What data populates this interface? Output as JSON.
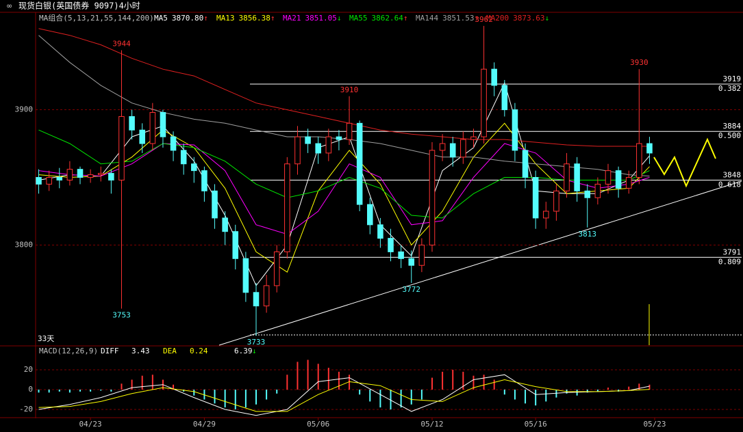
{
  "chart_data": {
    "type": "candlestick",
    "title": "现货白银(英国债券 9097)4小时",
    "ma_title": "MA组合(5,13,21,55,144,200)",
    "period_label": "33天",
    "xlim": [
      -0.3,
      67.9
    ],
    "ylim": [
      3726,
      3971
    ],
    "yticks": [
      3800,
      3900
    ],
    "xticks": [
      {
        "value": 5,
        "label": "04/23"
      },
      {
        "value": 16,
        "label": "04/29"
      },
      {
        "value": 27,
        "label": "05/06"
      },
      {
        "value": 38,
        "label": "05/12"
      },
      {
        "value": 48,
        "label": "05/16"
      },
      {
        "value": 59.5,
        "label": "05/23"
      }
    ],
    "open": [
      3850,
      3845,
      3850,
      3848,
      3856,
      3850,
      3852,
      3853,
      3848,
      3895,
      3885,
      3875,
      3898,
      3880,
      3870,
      3860,
      3855,
      3840,
      3820,
      3810,
      3790,
      3765,
      3755,
      3770,
      3795,
      3860,
      3880,
      3875,
      3868,
      3880,
      3878,
      3890,
      3830,
      3815,
      3805,
      3795,
      3790,
      3785,
      3800,
      3870,
      3875,
      3865,
      3878,
      3880,
      3930,
      3918,
      3900,
      3870,
      3850,
      3820,
      3825,
      3840,
      3860,
      3840,
      3835,
      3845,
      3855,
      3842,
      3850,
      3875
    ],
    "high": [
      3856,
      3855,
      3857,
      3862,
      3858,
      3856,
      3858,
      3856,
      3944,
      3900,
      3890,
      3905,
      3900,
      3884,
      3875,
      3865,
      3858,
      3845,
      3825,
      3815,
      3795,
      3772,
      3778,
      3800,
      3865,
      3888,
      3886,
      3880,
      3886,
      3885,
      3910,
      3892,
      3835,
      3820,
      3812,
      3800,
      3796,
      3805,
      3876,
      3882,
      3880,
      3884,
      3886,
      3962,
      3935,
      3922,
      3905,
      3875,
      3855,
      3832,
      3845,
      3868,
      3865,
      3845,
      3850,
      3860,
      3858,
      3855,
      3930,
      3880
    ],
    "low": [
      3838,
      3840,
      3842,
      3844,
      3845,
      3846,
      3847,
      3838,
      3753,
      3878,
      3868,
      3870,
      3872,
      3862,
      3852,
      3846,
      3832,
      3812,
      3800,
      3782,
      3758,
      3733,
      3750,
      3765,
      3790,
      3852,
      3868,
      3860,
      3862,
      3870,
      3874,
      3825,
      3808,
      3798,
      3788,
      3783,
      3772,
      3780,
      3795,
      3862,
      3858,
      3860,
      3872,
      3875,
      3910,
      3895,
      3862,
      3842,
      3812,
      3812,
      3818,
      3835,
      3832,
      3813,
      3830,
      3838,
      3835,
      3838,
      3845,
      3860
    ],
    "close": [
      3845,
      3850,
      3848,
      3856,
      3850,
      3852,
      3853,
      3848,
      3895,
      3885,
      3875,
      3898,
      3880,
      3870,
      3860,
      3855,
      3840,
      3820,
      3810,
      3790,
      3765,
      3755,
      3770,
      3795,
      3860,
      3880,
      3875,
      3868,
      3880,
      3878,
      3890,
      3830,
      3815,
      3805,
      3795,
      3790,
      3785,
      3800,
      3870,
      3875,
      3865,
      3878,
      3880,
      3930,
      3918,
      3900,
      3870,
      3850,
      3820,
      3825,
      3840,
      3860,
      3840,
      3835,
      3845,
      3855,
      3842,
      3850,
      3875,
      3868
    ],
    "up_color": "#ff3232",
    "down_color": "#54fcfc",
    "ma_x": [
      0,
      3,
      6,
      9,
      12,
      15,
      18,
      21,
      24,
      27,
      30,
      33,
      36,
      39,
      42,
      45,
      48,
      51,
      54,
      57,
      59
    ],
    "series": [
      {
        "name": "MA5",
        "color": "#ffffff",
        "legend_value": "3870.80",
        "arrow": "↑",
        "values": [
          3848,
          3852,
          3851,
          3880,
          3888,
          3862,
          3822,
          3770,
          3800,
          3872,
          3880,
          3815,
          3792,
          3855,
          3872,
          3920,
          3840,
          3838,
          3838,
          3848,
          3866
        ]
      },
      {
        "name": "MA13",
        "color": "#ffff00",
        "legend_value": "3856.38",
        "arrow": "↑",
        "values": [
          3852,
          3850,
          3851,
          3865,
          3885,
          3872,
          3842,
          3795,
          3780,
          3840,
          3870,
          3845,
          3800,
          3825,
          3865,
          3890,
          3860,
          3838,
          3840,
          3842,
          3858
        ]
      },
      {
        "name": "MA21",
        "color": "#ff00ff",
        "legend_value": "3851.05",
        "arrow": "↓",
        "values": [
          3855,
          3852,
          3851,
          3860,
          3875,
          3874,
          3855,
          3815,
          3808,
          3825,
          3860,
          3850,
          3815,
          3818,
          3850,
          3875,
          3868,
          3848,
          3842,
          3845,
          3850
        ]
      },
      {
        "name": "MA55",
        "color": "#00e600",
        "legend_value": "3862.64",
        "arrow": "↑",
        "values": [
          3885,
          3875,
          3860,
          3862,
          3875,
          3872,
          3862,
          3845,
          3835,
          3840,
          3850,
          3842,
          3822,
          3820,
          3838,
          3850,
          3850,
          3848,
          3848,
          3848,
          3855
        ]
      },
      {
        "name": "MA144",
        "color": "#a0a0a0",
        "legend_value": "3851.53",
        "arrow": "↑",
        "values": [
          3955,
          3935,
          3918,
          3905,
          3898,
          3893,
          3890,
          3885,
          3880,
          3880,
          3878,
          3875,
          3870,
          3865,
          3865,
          3862,
          3860,
          3858,
          3856,
          3852,
          3851
        ]
      },
      {
        "name": "MA200",
        "color": "#e02020",
        "legend_value": "3873.63",
        "arrow": "↓",
        "values": [
          3960,
          3955,
          3948,
          3938,
          3930,
          3925,
          3915,
          3905,
          3900,
          3895,
          3890,
          3885,
          3882,
          3880,
          3878,
          3878,
          3876,
          3874,
          3873,
          3873,
          3873
        ]
      }
    ],
    "annotations": [
      {
        "index": 8,
        "value": 3944
      },
      {
        "index": 8,
        "value": 3753
      },
      {
        "index": 21,
        "value": 3733
      },
      {
        "index": 30,
        "value": 3910
      },
      {
        "index": 36,
        "value": 3772
      },
      {
        "index": 43,
        "value": 3962
      },
      {
        "index": 58,
        "value": 3930
      },
      {
        "index": 53,
        "value": 3813
      }
    ],
    "levels": [
      {
        "value": 3919,
        "ratio": "0.382"
      },
      {
        "value": 3884,
        "ratio": "0.500"
      },
      {
        "value": 3848,
        "ratio": "0.618"
      },
      {
        "value": 3791,
        "ratio": "0.809"
      }
    ],
    "macd": {
      "title": "MACD(12,26,9)",
      "diff_label": "DIFF",
      "diff": "3.43",
      "dea_label": "DEA",
      "dea": "0.24",
      "macd": "6.39",
      "arrow": "↓",
      "ylim": [
        -27.6,
        43.4
      ],
      "yticks": [
        20,
        0,
        -20
      ],
      "histogram": [
        -3,
        -3,
        -2,
        -3,
        -2,
        -2,
        -1,
        -2,
        6,
        10,
        14,
        15,
        10,
        5,
        -2,
        -6,
        -10,
        -14,
        -18,
        -20,
        -18,
        -15,
        -10,
        -4,
        15,
        28,
        30,
        26,
        22,
        18,
        15,
        -5,
        -12,
        -18,
        -20,
        -18,
        -15,
        -10,
        12,
        18,
        20,
        18,
        14,
        15,
        10,
        -5,
        -10,
        -14,
        -16,
        -12,
        -8,
        -4,
        -6,
        -3,
        -2,
        2,
        -2,
        3,
        6,
        5
      ],
      "diff_values": [
        -20,
        -15,
        -8,
        2,
        5,
        -8,
        -20,
        -26,
        -20,
        8,
        12,
        -5,
        -22,
        -10,
        10,
        15,
        -5,
        -3,
        -2,
        -1,
        3.43
      ],
      "dea_values": [
        -18,
        -17,
        -12,
        -4,
        2,
        -2,
        -12,
        -22,
        -22,
        -5,
        8,
        4,
        -10,
        -12,
        2,
        10,
        3,
        -2,
        -2,
        -1,
        0.24
      ],
      "diff_color": "#ffffff",
      "dea_color": "#ffff00"
    }
  }
}
